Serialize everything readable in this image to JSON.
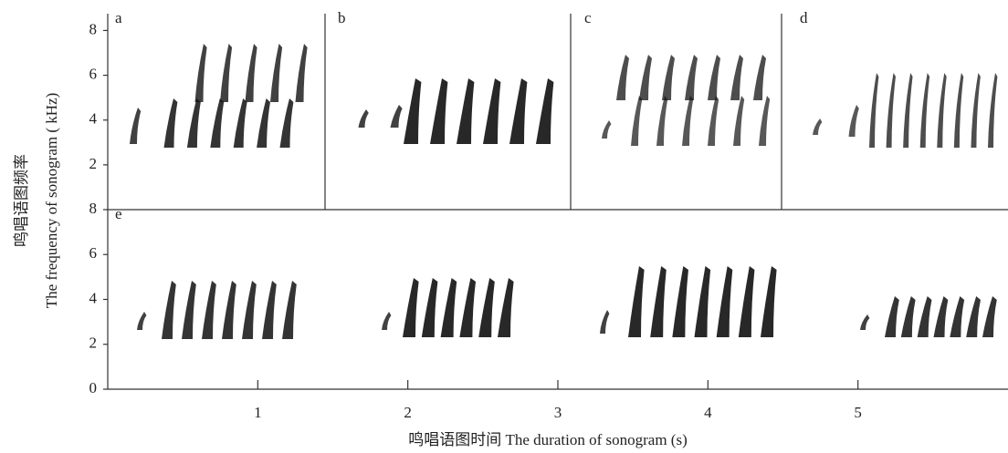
{
  "chart_data": {
    "type": "sonogram",
    "ylabel": [
      "鸣唱语图频率",
      "The frequency of sonogram ( kHz)"
    ],
    "xlabel": "鸣唱语图时间  The duration of sonogram (s)",
    "xlim": [
      0,
      6
    ],
    "xticks": [
      1,
      2,
      3,
      4,
      5
    ],
    "panels": [
      {
        "labels": [
          "a",
          "b",
          "c",
          "d"
        ],
        "ylim": [
          0,
          8.75
        ],
        "yticks": [
          2,
          4,
          6,
          8
        ]
      },
      {
        "labels": [
          "e"
        ],
        "ylim": [
          0,
          8
        ],
        "yticks": [
          0,
          2,
          4,
          6,
          8
        ]
      }
    ]
  }
}
